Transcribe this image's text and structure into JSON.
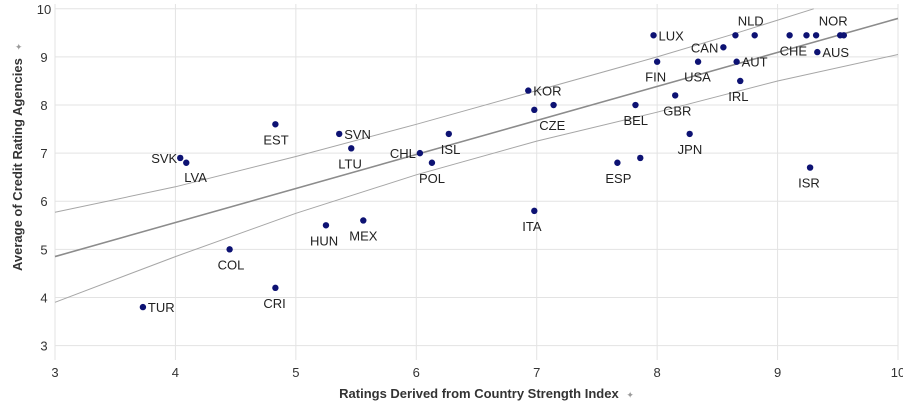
{
  "chart_data": {
    "type": "scatter",
    "xlabel": "Ratings Derived from Country Strength Index",
    "ylabel": "Average of Credit Rating Agencies",
    "axis_pin_icon": "pin-icon",
    "xlim": [
      3,
      10
    ],
    "ylim": [
      2.7,
      10.1
    ],
    "x_ticks": [
      3,
      4,
      5,
      6,
      7,
      8,
      9,
      10
    ],
    "y_ticks": [
      3,
      4,
      5,
      6,
      7,
      8,
      9,
      10
    ],
    "grid": true,
    "point_color": "#0d1273",
    "trend_color": "#8c8c8c",
    "band_color": "#a6a6a6",
    "points": [
      {
        "label": "TUR",
        "x": 3.73,
        "y": 3.8
      },
      {
        "label": "SVK",
        "x": 4.04,
        "y": 6.9
      },
      {
        "label": "LVA",
        "x": 4.09,
        "y": 6.8
      },
      {
        "label": "COL",
        "x": 4.45,
        "y": 5.0
      },
      {
        "label": "EST",
        "x": 4.83,
        "y": 7.6
      },
      {
        "label": "CRI",
        "x": 4.83,
        "y": 4.2
      },
      {
        "label": "HUN",
        "x": 5.25,
        "y": 5.5
      },
      {
        "label": "SVN",
        "x": 5.36,
        "y": 7.4
      },
      {
        "label": "LTU",
        "x": 5.46,
        "y": 7.1
      },
      {
        "label": "MEX",
        "x": 5.56,
        "y": 5.6
      },
      {
        "label": "CHL",
        "x": 6.03,
        "y": 7.0
      },
      {
        "label": "POL",
        "x": 6.13,
        "y": 6.8
      },
      {
        "label": "ISL",
        "x": 6.27,
        "y": 7.4
      },
      {
        "label": "KOR",
        "x": 6.93,
        "y": 8.3
      },
      {
        "label": "CZE",
        "x": 6.98,
        "y": 7.9
      },
      {
        "label": "",
        "x": 7.14,
        "y": 8.0
      },
      {
        "label": "ITA",
        "x": 6.98,
        "y": 5.8
      },
      {
        "label": "ESP",
        "x": 7.67,
        "y": 6.8
      },
      {
        "label": "",
        "x": 7.86,
        "y": 6.9
      },
      {
        "label": "BEL",
        "x": 7.82,
        "y": 8.0
      },
      {
        "label": "LUX",
        "x": 7.97,
        "y": 9.45
      },
      {
        "label": "FIN",
        "x": 8.0,
        "y": 8.9
      },
      {
        "label": "GBR",
        "x": 8.15,
        "y": 8.2
      },
      {
        "label": "JPN",
        "x": 8.27,
        "y": 7.4
      },
      {
        "label": "USA",
        "x": 8.34,
        "y": 8.9
      },
      {
        "label": "CAN",
        "x": 8.55,
        "y": 9.2
      },
      {
        "label": "",
        "x": 8.65,
        "y": 9.45
      },
      {
        "label": "AUT",
        "x": 8.66,
        "y": 8.9
      },
      {
        "label": "IRL",
        "x": 8.69,
        "y": 8.5
      },
      {
        "label": "NLD",
        "x": 8.81,
        "y": 9.45
      },
      {
        "label": "CHE",
        "x": 9.1,
        "y": 9.45
      },
      {
        "label": "",
        "x": 9.24,
        "y": 9.45
      },
      {
        "label": "ISR",
        "x": 9.27,
        "y": 6.7
      },
      {
        "label": "",
        "x": 9.32,
        "y": 9.45
      },
      {
        "label": "AUS",
        "x": 9.33,
        "y": 9.1
      },
      {
        "label": "",
        "x": 9.52,
        "y": 9.45
      },
      {
        "label": "NOR",
        "x": 9.55,
        "y": 9.45
      }
    ],
    "trend_line": [
      [
        3,
        4.85
      ],
      [
        10,
        9.8
      ]
    ],
    "upper_band": [
      [
        3,
        5.77
      ],
      [
        4,
        6.3
      ],
      [
        5,
        6.93
      ],
      [
        6,
        7.6
      ],
      [
        7,
        8.3
      ],
      [
        8,
        9.0
      ],
      [
        8.6,
        9.45
      ],
      [
        9.3,
        10.0
      ]
    ],
    "lower_band": [
      [
        3,
        3.9
      ],
      [
        4,
        4.85
      ],
      [
        5,
        5.75
      ],
      [
        6,
        6.55
      ],
      [
        7,
        7.25
      ],
      [
        8,
        7.85
      ],
      [
        9,
        8.5
      ],
      [
        10,
        9.05
      ]
    ]
  }
}
